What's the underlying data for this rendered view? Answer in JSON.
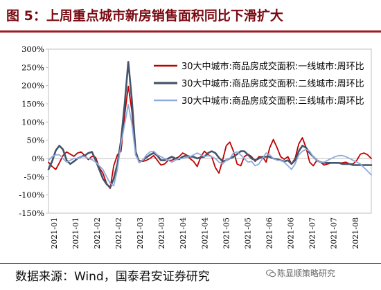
{
  "header": {
    "title": "图 5：上周重点城市新房销售面积同比下滑扩大"
  },
  "footer": {
    "source": "数据来源：Wind，国泰君安证券研究",
    "watermark": "陈显顺策略研究"
  },
  "colors": {
    "title": "#7a0a12",
    "rule": "#9b1b22"
  },
  "chart_data": {
    "type": "line",
    "legend_position": "top-right",
    "grid": false,
    "ylim": [
      -150,
      300
    ],
    "yunit": "%",
    "yticks": [
      "300%",
      "250%",
      "200%",
      "150%",
      "100%",
      "50%",
      "0%",
      "-50%",
      "-100%",
      "-150%"
    ],
    "xticks": [
      "2021-01",
      "2021-01",
      "2021-02",
      "2021-02",
      "2021-03",
      "2021-03",
      "2021-04",
      "2021-04",
      "2021-05",
      "2021-05",
      "2021-06",
      "2021-06",
      "2021-07",
      "2021-07",
      "2021-08"
    ],
    "series": [
      {
        "name": "30大中城市:商品房成交面积:一线城市:周环比",
        "color": "#c00000",
        "width": 1.8,
        "values": [
          -10,
          -22,
          -30,
          -12,
          8,
          18,
          12,
          6,
          15,
          18,
          8,
          -3,
          6,
          3,
          -25,
          -40,
          -68,
          -82,
          -20,
          10,
          20,
          120,
          198,
          130,
          10,
          -5,
          -8,
          -5,
          0,
          8,
          -5,
          -18,
          -15,
          -5,
          -5,
          0,
          5,
          15,
          10,
          0,
          -8,
          -22,
          5,
          20,
          10,
          5,
          -25,
          -40,
          -5,
          35,
          45,
          20,
          -15,
          -20,
          5,
          12,
          5,
          -8,
          5,
          5,
          -10,
          30,
          52,
          30,
          5,
          -2,
          5,
          -15,
          0,
          40,
          57,
          30,
          -10,
          -20,
          -5,
          -10,
          -18,
          -15,
          -12,
          -12,
          -12,
          -12,
          -10,
          -15,
          -15,
          -5,
          12,
          15,
          10,
          0
        ]
      },
      {
        "name": "30大中城市:商品房成交面积:二线城市:周环比",
        "color": "#44546a",
        "width": 2.6,
        "values": [
          -30,
          -8,
          22,
          35,
          25,
          -5,
          -15,
          -8,
          0,
          5,
          8,
          15,
          18,
          -5,
          -30,
          -55,
          -70,
          -80,
          -55,
          -15,
          50,
          150,
          265,
          160,
          20,
          -10,
          -5,
          3,
          10,
          15,
          8,
          -5,
          -5,
          0,
          5,
          0,
          -2,
          5,
          8,
          5,
          5,
          0,
          3,
          5,
          15,
          20,
          15,
          2,
          -8,
          -5,
          0,
          5,
          12,
          20,
          20,
          10,
          0,
          -5,
          0,
          5,
          5,
          5,
          0,
          -2,
          -5,
          -8,
          -5,
          -15,
          -5,
          20,
          35,
          30,
          15,
          5,
          -5,
          -10,
          -12,
          -12,
          -12,
          -12,
          -12,
          -15,
          -15,
          -15,
          -18,
          -18,
          -18,
          -18,
          -18,
          -18
        ]
      },
      {
        "name": "30大中城市:商品房成交面积:三线城市:周环比",
        "color": "#8faadc",
        "width": 1.8,
        "values": [
          -5,
          5,
          10,
          10,
          0,
          -10,
          -5,
          0,
          0,
          5,
          5,
          0,
          -3,
          -10,
          -20,
          -30,
          -50,
          -68,
          -75,
          -30,
          40,
          95,
          148,
          95,
          10,
          -10,
          -5,
          10,
          18,
          20,
          10,
          5,
          0,
          -5,
          -10,
          -5,
          0,
          0,
          3,
          5,
          10,
          15,
          10,
          5,
          8,
          5,
          0,
          -10,
          -15,
          -5,
          0,
          15,
          18,
          10,
          0,
          -10,
          -8,
          -20,
          -15,
          0,
          15,
          10,
          0,
          -5,
          -5,
          -10,
          -20,
          -30,
          -15,
          10,
          20,
          25,
          20,
          5,
          -5,
          -10,
          -10,
          -5,
          0,
          5,
          8,
          8,
          5,
          0,
          -5,
          -10,
          -15,
          -25,
          -35,
          -45
        ]
      }
    ]
  }
}
